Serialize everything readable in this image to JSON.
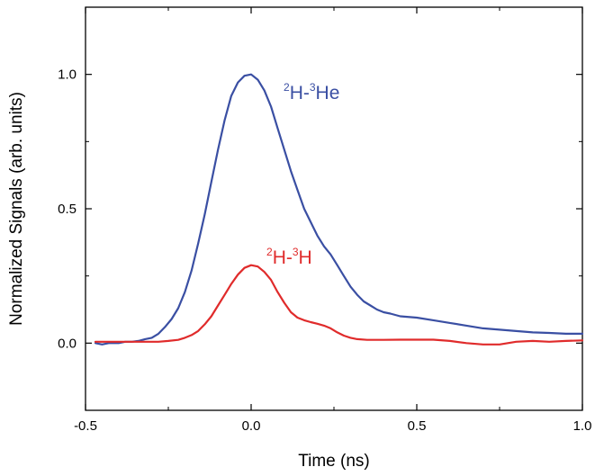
{
  "chart_data": {
    "type": "line",
    "title": "",
    "xlabel": "Time (ns)",
    "ylabel": "Normalized Signals (arb. units)",
    "xlim": [
      -0.5,
      1.0
    ],
    "ylim": [
      -0.25,
      1.25
    ],
    "x_ticks": [
      -0.5,
      0.0,
      0.5,
      1.0
    ],
    "x_tick_labels": [
      "-0.5",
      "0.0",
      "0.5",
      "1.0"
    ],
    "y_ticks": [
      0.0,
      0.5,
      1.0
    ],
    "y_tick_labels": [
      "0.0",
      "0.5",
      "1.0"
    ],
    "grid": false,
    "legend": "none",
    "series": [
      {
        "color": "#3a4fa3",
        "annotation": {
          "mass_a": "2",
          "sym_a": "H-",
          "mass_b": "3",
          "sym_b": "He"
        },
        "x": [
          -0.47,
          -0.45,
          -0.43,
          -0.4,
          -0.38,
          -0.36,
          -0.34,
          -0.32,
          -0.3,
          -0.28,
          -0.26,
          -0.24,
          -0.22,
          -0.2,
          -0.18,
          -0.16,
          -0.14,
          -0.12,
          -0.1,
          -0.08,
          -0.06,
          -0.04,
          -0.02,
          0.0,
          0.02,
          0.04,
          0.06,
          0.08,
          0.1,
          0.12,
          0.14,
          0.16,
          0.18,
          0.2,
          0.22,
          0.24,
          0.26,
          0.28,
          0.3,
          0.32,
          0.34,
          0.36,
          0.38,
          0.4,
          0.42,
          0.45,
          0.5,
          0.55,
          0.6,
          0.65,
          0.7,
          0.75,
          0.8,
          0.85,
          0.9,
          0.95,
          1.0
        ],
        "y": [
          0.0,
          -0.005,
          0.0,
          0.0,
          0.005,
          0.005,
          0.008,
          0.015,
          0.02,
          0.035,
          0.06,
          0.09,
          0.13,
          0.19,
          0.27,
          0.37,
          0.48,
          0.6,
          0.72,
          0.83,
          0.92,
          0.97,
          0.995,
          1.0,
          0.98,
          0.94,
          0.88,
          0.8,
          0.72,
          0.64,
          0.57,
          0.5,
          0.45,
          0.4,
          0.36,
          0.33,
          0.29,
          0.25,
          0.21,
          0.18,
          0.155,
          0.14,
          0.125,
          0.115,
          0.11,
          0.1,
          0.095,
          0.085,
          0.075,
          0.065,
          0.055,
          0.05,
          0.045,
          0.04,
          0.038,
          0.035,
          0.035
        ]
      },
      {
        "color": "#e02b2b",
        "annotation": {
          "mass_a": "2",
          "sym_a": "H-",
          "mass_b": "3",
          "sym_b": "H"
        },
        "x": [
          -0.47,
          -0.44,
          -0.4,
          -0.36,
          -0.32,
          -0.28,
          -0.25,
          -0.22,
          -0.2,
          -0.18,
          -0.16,
          -0.14,
          -0.12,
          -0.1,
          -0.08,
          -0.06,
          -0.04,
          -0.02,
          0.0,
          0.02,
          0.04,
          0.06,
          0.08,
          0.1,
          0.12,
          0.14,
          0.16,
          0.18,
          0.2,
          0.22,
          0.24,
          0.26,
          0.28,
          0.3,
          0.32,
          0.35,
          0.4,
          0.45,
          0.5,
          0.55,
          0.6,
          0.65,
          0.7,
          0.75,
          0.8,
          0.85,
          0.9,
          0.95,
          1.0
        ],
        "y": [
          0.005,
          0.005,
          0.005,
          0.005,
          0.005,
          0.005,
          0.008,
          0.012,
          0.02,
          0.03,
          0.045,
          0.07,
          0.1,
          0.14,
          0.18,
          0.22,
          0.255,
          0.28,
          0.29,
          0.285,
          0.265,
          0.235,
          0.19,
          0.15,
          0.115,
          0.095,
          0.085,
          0.078,
          0.072,
          0.065,
          0.055,
          0.04,
          0.028,
          0.02,
          0.015,
          0.012,
          0.012,
          0.013,
          0.013,
          0.013,
          0.008,
          0.0,
          -0.005,
          -0.005,
          0.005,
          0.008,
          0.005,
          0.008,
          0.01
        ]
      }
    ]
  }
}
